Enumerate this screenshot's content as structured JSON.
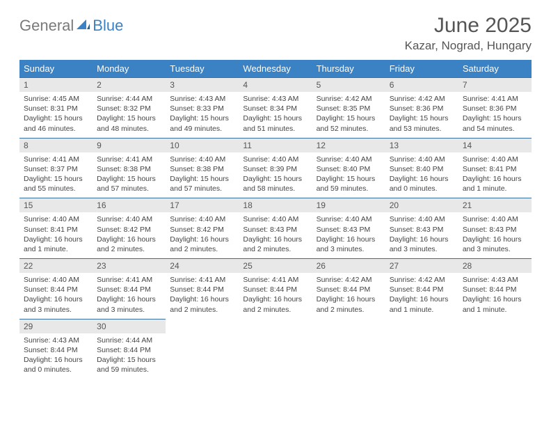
{
  "logo": {
    "word1": "General",
    "word2": "Blue"
  },
  "title": "June 2025",
  "location": "Kazar, Nograd, Hungary",
  "colors": {
    "header_bg": "#3b82c4",
    "header_text": "#ffffff",
    "daynum_bg": "#e8e8e8",
    "border": "#3b6ea0",
    "logo_gray": "#7a7a7a",
    "logo_blue": "#3b82c4"
  },
  "weekdays": [
    "Sunday",
    "Monday",
    "Tuesday",
    "Wednesday",
    "Thursday",
    "Friday",
    "Saturday"
  ],
  "weeks": [
    [
      {
        "n": "1",
        "sr": "Sunrise: 4:45 AM",
        "ss": "Sunset: 8:31 PM",
        "dl": "Daylight: 15 hours and 46 minutes."
      },
      {
        "n": "2",
        "sr": "Sunrise: 4:44 AM",
        "ss": "Sunset: 8:32 PM",
        "dl": "Daylight: 15 hours and 48 minutes."
      },
      {
        "n": "3",
        "sr": "Sunrise: 4:43 AM",
        "ss": "Sunset: 8:33 PM",
        "dl": "Daylight: 15 hours and 49 minutes."
      },
      {
        "n": "4",
        "sr": "Sunrise: 4:43 AM",
        "ss": "Sunset: 8:34 PM",
        "dl": "Daylight: 15 hours and 51 minutes."
      },
      {
        "n": "5",
        "sr": "Sunrise: 4:42 AM",
        "ss": "Sunset: 8:35 PM",
        "dl": "Daylight: 15 hours and 52 minutes."
      },
      {
        "n": "6",
        "sr": "Sunrise: 4:42 AM",
        "ss": "Sunset: 8:36 PM",
        "dl": "Daylight: 15 hours and 53 minutes."
      },
      {
        "n": "7",
        "sr": "Sunrise: 4:41 AM",
        "ss": "Sunset: 8:36 PM",
        "dl": "Daylight: 15 hours and 54 minutes."
      }
    ],
    [
      {
        "n": "8",
        "sr": "Sunrise: 4:41 AM",
        "ss": "Sunset: 8:37 PM",
        "dl": "Daylight: 15 hours and 55 minutes."
      },
      {
        "n": "9",
        "sr": "Sunrise: 4:41 AM",
        "ss": "Sunset: 8:38 PM",
        "dl": "Daylight: 15 hours and 57 minutes."
      },
      {
        "n": "10",
        "sr": "Sunrise: 4:40 AM",
        "ss": "Sunset: 8:38 PM",
        "dl": "Daylight: 15 hours and 57 minutes."
      },
      {
        "n": "11",
        "sr": "Sunrise: 4:40 AM",
        "ss": "Sunset: 8:39 PM",
        "dl": "Daylight: 15 hours and 58 minutes."
      },
      {
        "n": "12",
        "sr": "Sunrise: 4:40 AM",
        "ss": "Sunset: 8:40 PM",
        "dl": "Daylight: 15 hours and 59 minutes."
      },
      {
        "n": "13",
        "sr": "Sunrise: 4:40 AM",
        "ss": "Sunset: 8:40 PM",
        "dl": "Daylight: 16 hours and 0 minutes."
      },
      {
        "n": "14",
        "sr": "Sunrise: 4:40 AM",
        "ss": "Sunset: 8:41 PM",
        "dl": "Daylight: 16 hours and 1 minute."
      }
    ],
    [
      {
        "n": "15",
        "sr": "Sunrise: 4:40 AM",
        "ss": "Sunset: 8:41 PM",
        "dl": "Daylight: 16 hours and 1 minute."
      },
      {
        "n": "16",
        "sr": "Sunrise: 4:40 AM",
        "ss": "Sunset: 8:42 PM",
        "dl": "Daylight: 16 hours and 2 minutes."
      },
      {
        "n": "17",
        "sr": "Sunrise: 4:40 AM",
        "ss": "Sunset: 8:42 PM",
        "dl": "Daylight: 16 hours and 2 minutes."
      },
      {
        "n": "18",
        "sr": "Sunrise: 4:40 AM",
        "ss": "Sunset: 8:43 PM",
        "dl": "Daylight: 16 hours and 2 minutes."
      },
      {
        "n": "19",
        "sr": "Sunrise: 4:40 AM",
        "ss": "Sunset: 8:43 PM",
        "dl": "Daylight: 16 hours and 3 minutes."
      },
      {
        "n": "20",
        "sr": "Sunrise: 4:40 AM",
        "ss": "Sunset: 8:43 PM",
        "dl": "Daylight: 16 hours and 3 minutes."
      },
      {
        "n": "21",
        "sr": "Sunrise: 4:40 AM",
        "ss": "Sunset: 8:43 PM",
        "dl": "Daylight: 16 hours and 3 minutes."
      }
    ],
    [
      {
        "n": "22",
        "sr": "Sunrise: 4:40 AM",
        "ss": "Sunset: 8:44 PM",
        "dl": "Daylight: 16 hours and 3 minutes."
      },
      {
        "n": "23",
        "sr": "Sunrise: 4:41 AM",
        "ss": "Sunset: 8:44 PM",
        "dl": "Daylight: 16 hours and 3 minutes."
      },
      {
        "n": "24",
        "sr": "Sunrise: 4:41 AM",
        "ss": "Sunset: 8:44 PM",
        "dl": "Daylight: 16 hours and 2 minutes."
      },
      {
        "n": "25",
        "sr": "Sunrise: 4:41 AM",
        "ss": "Sunset: 8:44 PM",
        "dl": "Daylight: 16 hours and 2 minutes."
      },
      {
        "n": "26",
        "sr": "Sunrise: 4:42 AM",
        "ss": "Sunset: 8:44 PM",
        "dl": "Daylight: 16 hours and 2 minutes."
      },
      {
        "n": "27",
        "sr": "Sunrise: 4:42 AM",
        "ss": "Sunset: 8:44 PM",
        "dl": "Daylight: 16 hours and 1 minute."
      },
      {
        "n": "28",
        "sr": "Sunrise: 4:43 AM",
        "ss": "Sunset: 8:44 PM",
        "dl": "Daylight: 16 hours and 1 minute."
      }
    ],
    [
      {
        "n": "29",
        "sr": "Sunrise: 4:43 AM",
        "ss": "Sunset: 8:44 PM",
        "dl": "Daylight: 16 hours and 0 minutes."
      },
      {
        "n": "30",
        "sr": "Sunrise: 4:44 AM",
        "ss": "Sunset: 8:44 PM",
        "dl": "Daylight: 15 hours and 59 minutes."
      },
      null,
      null,
      null,
      null,
      null
    ]
  ]
}
